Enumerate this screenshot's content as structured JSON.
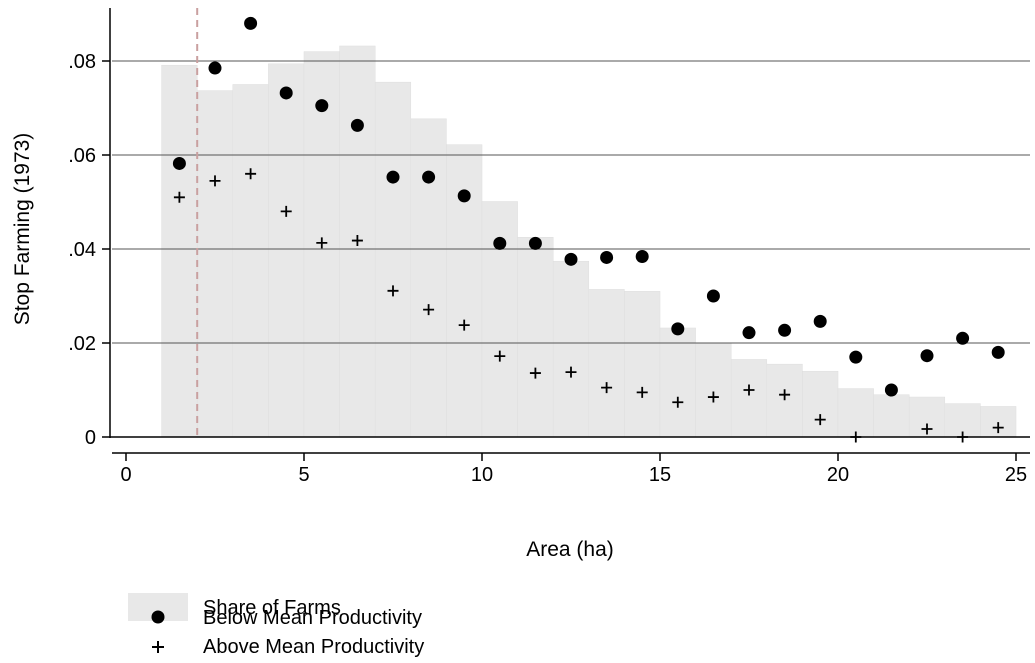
{
  "chart_data": {
    "type": "bar",
    "xlabel": "Area (ha)",
    "ylabel": "Stop Farming (1973)",
    "xlim": [
      0,
      25
    ],
    "ylim": [
      0,
      0.08
    ],
    "x_ticks": [
      {
        "value": 0,
        "label": "0"
      },
      {
        "value": 5,
        "label": "5"
      },
      {
        "value": 10,
        "label": "10"
      },
      {
        "value": 15,
        "label": "15"
      },
      {
        "value": 20,
        "label": "20"
      },
      {
        "value": 25,
        "label": "25"
      }
    ],
    "y_ticks": [
      {
        "value": 0,
        "label": "0"
      },
      {
        "value": 0.02,
        "label": ".02"
      },
      {
        "value": 0.04,
        "label": ".04"
      },
      {
        "value": 0.06,
        "label": ".06"
      },
      {
        "value": 0.08,
        "label": ".08"
      }
    ],
    "grid": "horizontal",
    "reference_line": {
      "x": 2,
      "style": "dashed",
      "color": "#c9a0a0"
    },
    "histogram": {
      "name": "Share of Farms",
      "color": "#e8e8e8",
      "bins": [
        {
          "start": 1,
          "end": 2,
          "value": 0.0791
        },
        {
          "start": 2,
          "end": 3,
          "value": 0.0737
        },
        {
          "start": 3,
          "end": 4,
          "value": 0.075
        },
        {
          "start": 4,
          "end": 5,
          "value": 0.0794
        },
        {
          "start": 5,
          "end": 6,
          "value": 0.082
        },
        {
          "start": 6,
          "end": 7,
          "value": 0.0832
        },
        {
          "start": 7,
          "end": 8,
          "value": 0.0755
        },
        {
          "start": 8,
          "end": 9,
          "value": 0.0677
        },
        {
          "start": 9,
          "end": 10,
          "value": 0.0622
        },
        {
          "start": 10,
          "end": 11,
          "value": 0.0501
        },
        {
          "start": 11,
          "end": 12,
          "value": 0.0425
        },
        {
          "start": 12,
          "end": 13,
          "value": 0.0374
        },
        {
          "start": 13,
          "end": 14,
          "value": 0.0314
        },
        {
          "start": 14,
          "end": 15,
          "value": 0.031
        },
        {
          "start": 15,
          "end": 16,
          "value": 0.0232
        },
        {
          "start": 16,
          "end": 17,
          "value": 0.02
        },
        {
          "start": 17,
          "end": 18,
          "value": 0.0165
        },
        {
          "start": 18,
          "end": 19,
          "value": 0.0155
        },
        {
          "start": 19,
          "end": 20,
          "value": 0.014
        },
        {
          "start": 20,
          "end": 21,
          "value": 0.0103
        },
        {
          "start": 21,
          "end": 22,
          "value": 0.009
        },
        {
          "start": 22,
          "end": 23,
          "value": 0.0085
        },
        {
          "start": 23,
          "end": 24,
          "value": 0.0071
        },
        {
          "start": 24,
          "end": 25,
          "value": 0.0065
        }
      ]
    },
    "series": [
      {
        "name": "Below Mean Productivity",
        "marker": "circle",
        "x": [
          1.5,
          2.5,
          3.5,
          4.5,
          5.5,
          6.5,
          7.5,
          8.5,
          9.5,
          10.5,
          11.5,
          12.5,
          13.5,
          14.5,
          15.5,
          16.5,
          17.5,
          18.5,
          19.5,
          20.5,
          21.5,
          22.5,
          23.5,
          24.5
        ],
        "values": [
          0.0582,
          0.0785,
          0.088,
          0.0732,
          0.0705,
          0.0663,
          0.0553,
          0.0553,
          0.0513,
          0.0412,
          0.0412,
          0.0378,
          0.0382,
          0.0384,
          0.023,
          0.03,
          0.0222,
          0.0227,
          0.0246,
          0.017,
          0.01,
          0.0173,
          0.021,
          0.018
        ]
      },
      {
        "name": "Above Mean Productivity",
        "marker": "plus",
        "x": [
          1.5,
          2.5,
          3.5,
          4.5,
          5.5,
          6.5,
          7.5,
          8.5,
          9.5,
          10.5,
          11.5,
          12.5,
          13.5,
          14.5,
          15.5,
          16.5,
          17.5,
          18.5,
          19.5,
          20.5,
          22.5,
          23.5,
          24.5
        ],
        "values": [
          0.051,
          0.0545,
          0.056,
          0.048,
          0.0413,
          0.0418,
          0.0311,
          0.0271,
          0.0238,
          0.0172,
          0.0136,
          0.0138,
          0.0105,
          0.0095,
          0.0074,
          0.0085,
          0.01,
          0.009,
          0.0037,
          0.0,
          0.0017,
          0.0,
          0.002
        ]
      }
    ],
    "legend": {
      "placement": "bottom-left",
      "entries": [
        {
          "label": "Share of Farms",
          "symbol": "box"
        },
        {
          "label": "Below Mean Productivity",
          "symbol": "circle"
        },
        {
          "label": "Above Mean Productivity",
          "symbol": "plus"
        }
      ]
    }
  }
}
